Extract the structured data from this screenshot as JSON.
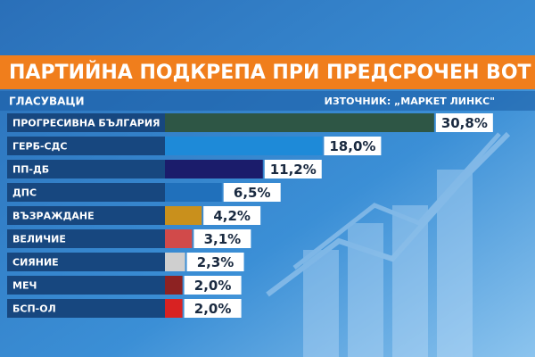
{
  "chart_data": {
    "type": "bar",
    "orientation": "horizontal",
    "title": "ПАРТИЙНА ПОДКРЕПА ПРИ ПРЕДСРОЧЕН ВОТ",
    "subtitle": "ГЛАСУВАЦИ",
    "source": "ИЗТОЧНИК: „МАРКЕТ ЛИНКС\"",
    "categories": [
      "ПРОГРЕСИВНА БЪЛГАРИЯ",
      "ГЕРБ-СДС",
      "ПП-ДБ",
      "ДПС",
      "ВЪЗРАЖДАНЕ",
      "ВЕЛИЧИЕ",
      "СИЯНИЕ",
      "МЕЧ",
      "БСП-ОЛ"
    ],
    "values": [
      30.8,
      18.0,
      11.2,
      6.5,
      4.2,
      3.1,
      2.3,
      2.0,
      2.0
    ],
    "value_labels": [
      "30,8%",
      "18,0%",
      "11,2%",
      "6,5%",
      "4,2%",
      "3,1%",
      "2,3%",
      "2,0%",
      "2,0%"
    ],
    "colors": [
      "#2e5645",
      "#1e8ad8",
      "#1b1c6b",
      "#2070bb",
      "#c9901c",
      "#d14a4a",
      "#cfcfcf",
      "#8d2222",
      "#d82222"
    ]
  }
}
